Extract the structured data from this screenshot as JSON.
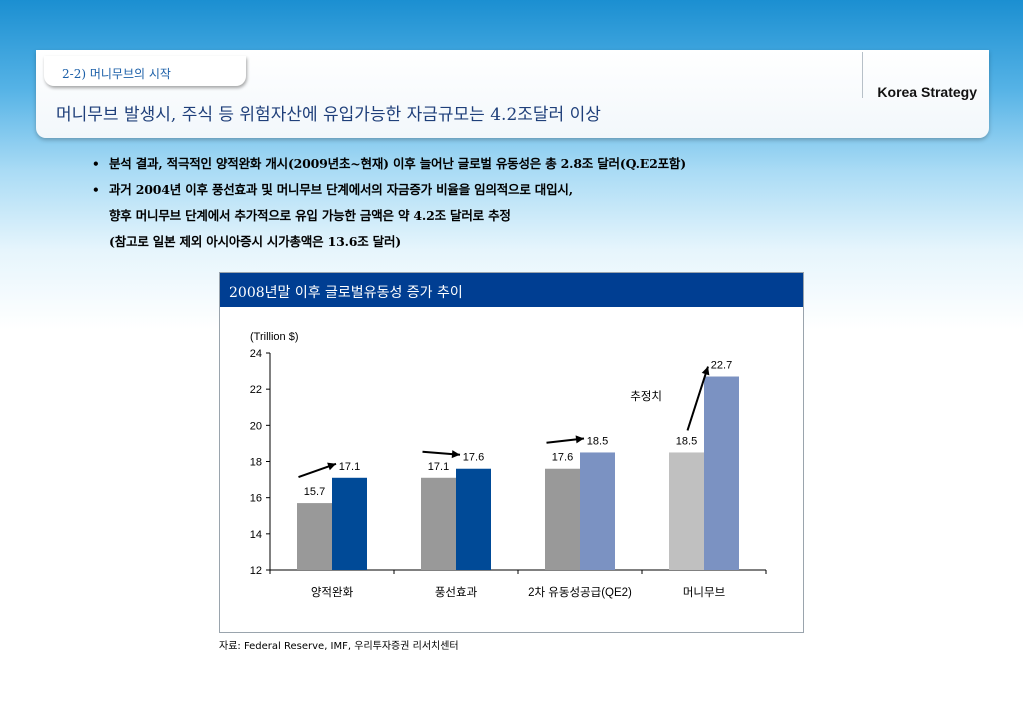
{
  "header": {
    "section_label": "2-2) 머니무브의 시작",
    "brand": "Korea Strategy",
    "headline": "머니무브 발생시, 주식 등 위험자산에 유입가능한 자금규모는 4.2조달러 이상"
  },
  "bullets": [
    {
      "lines": [
        "분석 결과, 적극적인 양적완화 개시(2009년초~현재) 이후 늘어난 글로벌 유동성은 총 2.8조 달러(Q.E2포함)"
      ]
    },
    {
      "lines": [
        "과거 2004년 이후 풍선효과 및 머니무브 단계에서의 자금증가 비율을 임의적으로 대입시,",
        "향후 머니무브 단계에서 추가적으로 유입 가능한 금액은 약 4.2조 달러로 추정",
        "(참고로 일본 제외 아시아증시 시가총액은 13.6조 달러)"
      ]
    }
  ],
  "source": "자료: Federal Reserve, IMF, 우리투자증권 리서치센터",
  "colors": {
    "title_bar": "#003e92",
    "before_bar": "#999999",
    "before_bar_light": "#c0c0c0",
    "after_bar_dark": "#004a97",
    "after_bar_light": "#7b92c2",
    "section_label": "#1b5fa8",
    "headline": "#1f3f7a"
  },
  "chart_data": {
    "type": "bar",
    "title": "2008년말 이후 글로벌유동성 증가 추이",
    "ylabel": "(Trillion $)",
    "ylim": [
      12,
      24
    ],
    "yticks": [
      12,
      14,
      16,
      18,
      20,
      22,
      24
    ],
    "categories": [
      "양적완화",
      "풍선효과",
      "2차 유동성공급(QE2)",
      "머니무브"
    ],
    "pairs": [
      {
        "before": 15.7,
        "after": 17.1
      },
      {
        "before": 17.1,
        "after": 17.6
      },
      {
        "before": 17.6,
        "after": 18.5
      },
      {
        "before": 18.5,
        "after": 22.7
      }
    ],
    "annotation": "추정치",
    "grid": false,
    "legend": "none"
  }
}
